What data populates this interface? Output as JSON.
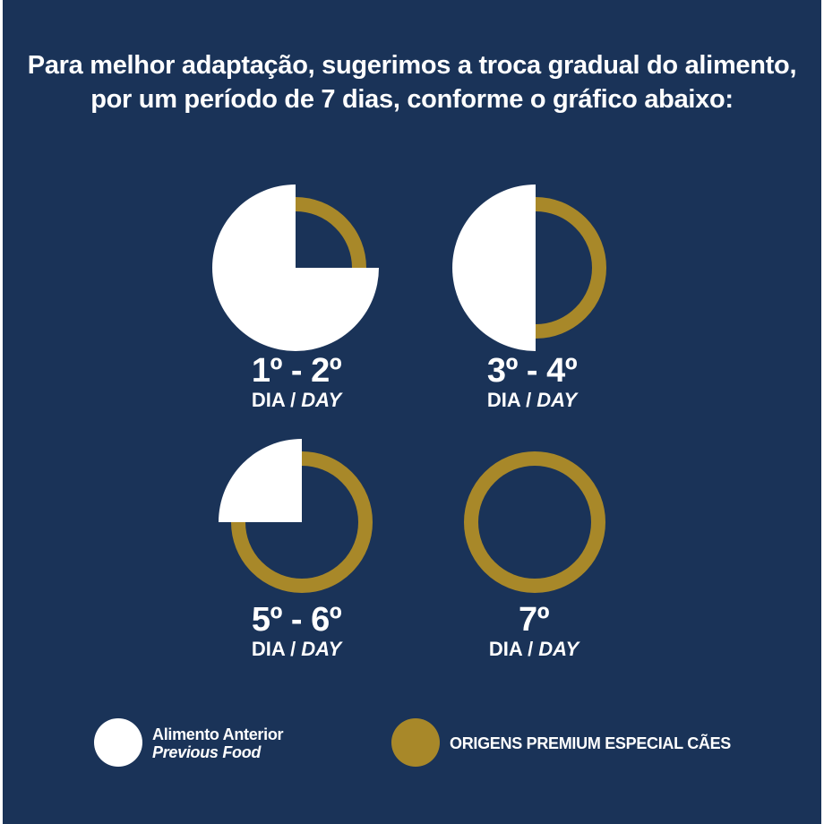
{
  "colors": {
    "background": "#1a3358",
    "previous_food": "#ffffff",
    "new_food": "#a88829"
  },
  "headline": {
    "line1": "Para melhor adaptação, sugerimos a troca gradual do alimento,",
    "line2": "por um período de 7 dias, conforme o gráfico abaixo:"
  },
  "stages": [
    {
      "days": "1º - 2º",
      "unit_pt": "DIA",
      "separator": " / ",
      "unit_en": "DAY",
      "previous_food_fraction": 0.75,
      "new_food_fraction": 0.25
    },
    {
      "days": "3º - 4º",
      "unit_pt": "DIA",
      "separator": " / ",
      "unit_en": "DAY",
      "previous_food_fraction": 0.5,
      "new_food_fraction": 0.5
    },
    {
      "days": "5º - 6º",
      "unit_pt": "DIA",
      "separator": " / ",
      "unit_en": "DAY",
      "previous_food_fraction": 0.25,
      "new_food_fraction": 0.75
    },
    {
      "days": "7º",
      "unit_pt": "DIA",
      "separator": " / ",
      "unit_en": "DAY",
      "previous_food_fraction": 0.0,
      "new_food_fraction": 1.0
    }
  ],
  "legend": {
    "previous_food_pt": "Alimento Anterior",
    "previous_food_en": "Previous Food",
    "new_food": "ORIGENS PREMIUM ESPECIAL CÃES"
  }
}
